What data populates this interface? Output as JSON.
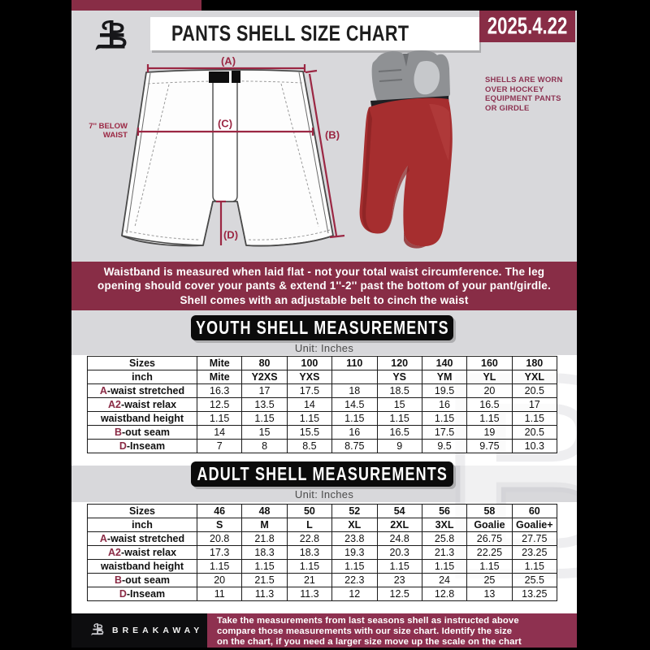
{
  "header": {
    "title": "PANTS SHELL SIZE CHART",
    "date": "2025.4.22"
  },
  "diagram": {
    "label_a": "(A)",
    "label_b": "(B)",
    "label_c": "(C)",
    "label_d": "(D)",
    "side_note_line1": "7'' BELOW",
    "side_note_line2": "WAIST",
    "photo_caption_line1": "SHELLS ARE WORN",
    "photo_caption_line2": "OVER HOCKEY",
    "photo_caption_line3": "EQUIPMENT PANTS",
    "photo_caption_line4": "OR GIRDLE"
  },
  "notice": {
    "line1": "Waistband is measured when laid flat - not your total waist circumference. The leg",
    "line2": "opening should cover your pants & extend 1''-2'' past the bottom of your pant/girdle.",
    "line3": "Shell comes with an adjustable belt to cinch the waist"
  },
  "youth": {
    "banner": "YOUTH SHELL MEASUREMENTS",
    "unit_label": "Unit: Inches",
    "table": {
      "rows": [
        {
          "accent": "",
          "label": "Sizes",
          "header": true,
          "values": [
            "Mite",
            "80",
            "100",
            "110",
            "120",
            "140",
            "160",
            "180"
          ]
        },
        {
          "accent": "",
          "label": "inch",
          "header": true,
          "values": [
            "Mite",
            "Y2XS",
            "YXS",
            "",
            "YS",
            "YM",
            "YL",
            "YXL"
          ]
        },
        {
          "accent": "A",
          "label": "-waist stretched",
          "header": false,
          "values": [
            "16.3",
            "17",
            "17.5",
            "18",
            "18.5",
            "19.5",
            "20",
            "20.5"
          ]
        },
        {
          "accent": "A2",
          "label": "-waist relax",
          "header": false,
          "values": [
            "12.5",
            "13.5",
            "14",
            "14.5",
            "15",
            "16",
            "16.5",
            "17"
          ]
        },
        {
          "accent": "",
          "label": "waistband height",
          "header": false,
          "values": [
            "1.15",
            "1.15",
            "1.15",
            "1.15",
            "1.15",
            "1.15",
            "1.15",
            "1.15"
          ]
        },
        {
          "accent": "B",
          "label": "-out seam",
          "header": false,
          "values": [
            "14",
            "15",
            "15.5",
            "16",
            "16.5",
            "17.5",
            "19",
            "20.5"
          ]
        },
        {
          "accent": "D",
          "label": "-Inseam",
          "header": false,
          "values": [
            "7",
            "8",
            "8.5",
            "8.75",
            "9",
            "9.5",
            "9.75",
            "10.3"
          ]
        }
      ]
    }
  },
  "adult": {
    "banner": "ADULT SHELL MEASUREMENTS",
    "unit_label": "Unit: Inches",
    "table": {
      "rows": [
        {
          "accent": "",
          "label": "Sizes",
          "header": true,
          "values": [
            "46",
            "48",
            "50",
            "52",
            "54",
            "56",
            "58",
            "60"
          ]
        },
        {
          "accent": "",
          "label": "inch",
          "header": true,
          "values": [
            "S",
            "M",
            "L",
            "XL",
            "2XL",
            "3XL",
            "Goalie",
            "Goalie+"
          ]
        },
        {
          "accent": "A",
          "label": "-waist stretched",
          "header": false,
          "values": [
            "20.8",
            "21.8",
            "22.8",
            "23.8",
            "24.8",
            "25.8",
            "26.75",
            "27.75"
          ]
        },
        {
          "accent": "A2",
          "label": "-waist relax",
          "header": false,
          "values": [
            "17.3",
            "18.3",
            "18.3",
            "19.3",
            "20.3",
            "21.3",
            "22.25",
            "23.25"
          ]
        },
        {
          "accent": "",
          "label": "waistband height",
          "header": false,
          "values": [
            "1.15",
            "1.15",
            "1.15",
            "1.15",
            "1.15",
            "1.15",
            "1.15",
            "1.15"
          ]
        },
        {
          "accent": "B",
          "label": "-out seam",
          "header": false,
          "values": [
            "20",
            "21.5",
            "21",
            "22.3",
            "23",
            "24",
            "25",
            "25.5"
          ]
        },
        {
          "accent": "D",
          "label": "-Inseam",
          "header": false,
          "values": [
            "11",
            "11.3",
            "11.3",
            "12",
            "12.5",
            "12.8",
            "13",
            "13.25"
          ]
        }
      ]
    }
  },
  "footer": {
    "brand": "BREAKAWAY",
    "line1": "Take the measurements from last seasons shell as instructed above",
    "line2": "compare those measurements with our size chart. Identify the size",
    "line3": "on the chart, if you need a larger size move up the scale on the chart",
    "watermark_letter": "B"
  },
  "colors": {
    "maroon": "#882d46",
    "footer_maroon": "#8e3150",
    "accent_text": "#8a2b45",
    "measure_line": "#9b2743",
    "sheet_gray": "#d8d8db",
    "banner_black": "#0b0b0b",
    "shell_red": "#a62e2f",
    "girdle_gray": "#8f9194"
  }
}
